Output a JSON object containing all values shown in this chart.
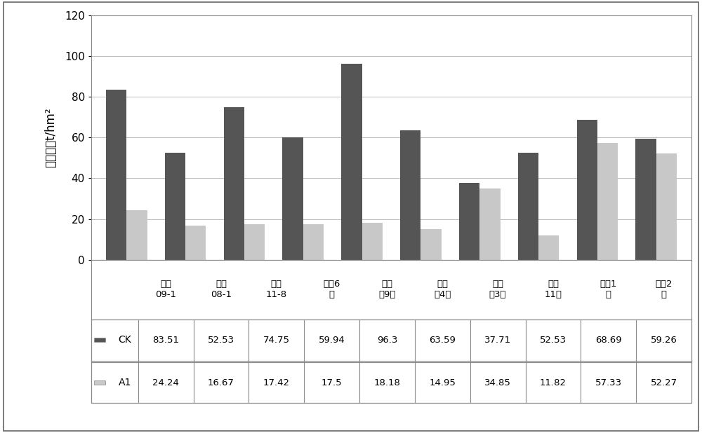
{
  "categories": [
    "晋甜\n09-1",
    "晋甜\n08-1",
    "济甜\n11-8",
    "济甜6\n号",
    "新高\n粱9号",
    "新高\n粱4号",
    "新高\n粱3号",
    "龙杂\n11号",
    "辽甜1\n号",
    "辽甜2\n号"
  ],
  "ck_values": [
    83.51,
    52.53,
    74.75,
    59.94,
    96.3,
    63.59,
    37.71,
    52.53,
    68.69,
    59.26
  ],
  "a1_values": [
    24.24,
    16.67,
    17.42,
    17.5,
    18.18,
    14.95,
    34.85,
    11.82,
    57.33,
    52.27
  ],
  "ck_color": "#555555",
  "a1_color": "#c8c8c8",
  "ylabel": "生物产量t/hm²",
  "ylim": [
    0,
    120
  ],
  "yticks": [
    0,
    20,
    40,
    60,
    80,
    100,
    120
  ],
  "legend_ck": "CK",
  "legend_a1": "A1",
  "bar_width": 0.35,
  "background_color": "#ffffff",
  "grid_color": "#bbbbbb",
  "border_color": "#888888",
  "table_ck": [
    "83.51",
    "52.53",
    "74.75",
    "59.94",
    "96.3",
    "63.59",
    "37.71",
    "52.53",
    "68.69",
    "59.26"
  ],
  "table_a1": [
    "24.24",
    "16.67",
    "17.42",
    "17.5",
    "18.18",
    "14.95",
    "34.85",
    "11.82",
    "57.33",
    "52.27"
  ]
}
